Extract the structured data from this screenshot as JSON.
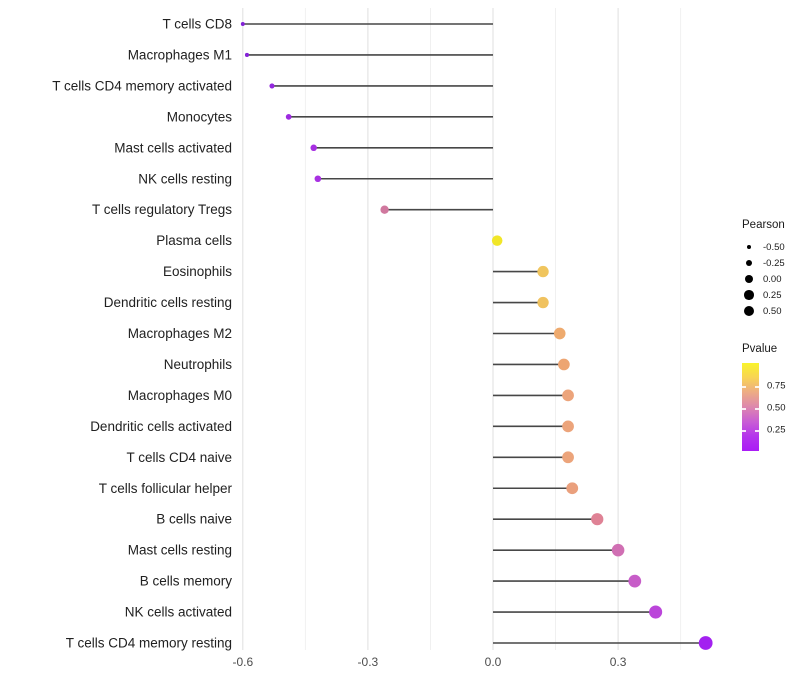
{
  "chart_data": {
    "type": "lollipop",
    "title": "",
    "xlabel": "",
    "ylabel": "",
    "axis_note": "horizontal lollipop chart of Pearson correlation per immune cell type; stem from 0 to value; dot size = Pearson, dot color = Pvalue",
    "xlim": [
      -0.66,
      0.56
    ],
    "x_ticks": [
      {
        "value": -0.6,
        "label": "-0.6"
      },
      {
        "value": -0.3,
        "label": "-0.3"
      },
      {
        "value": 0.0,
        "label": "0.0"
      },
      {
        "value": 0.3,
        "label": "0.3"
      }
    ],
    "x_minor_ticks": [
      -0.45,
      -0.15,
      0.15,
      0.45
    ],
    "grid": "vertical-only",
    "points": [
      {
        "label": "T cells CD8",
        "pearson": -0.6,
        "color": "#8222d6"
      },
      {
        "label": "Macrophages M1",
        "pearson": -0.59,
        "color": "#8523d8"
      },
      {
        "label": "T cells CD4 memory activated",
        "pearson": -0.53,
        "color": "#9328de"
      },
      {
        "label": "Monocytes",
        "pearson": -0.49,
        "color": "#9d2be0"
      },
      {
        "label": "Mast cells activated",
        "pearson": -0.43,
        "color": "#a72fe2"
      },
      {
        "label": "NK cells resting",
        "pearson": -0.42,
        "color": "#a831e2"
      },
      {
        "label": "T cells regulatory  Tregs",
        "pearson": -0.26,
        "color": "#d0789e"
      },
      {
        "label": "Plasma cells",
        "pearson": 0.01,
        "color": "#f1e628"
      },
      {
        "label": "Eosinophils",
        "pearson": 0.12,
        "color": "#f0c55e"
      },
      {
        "label": "Dendritic cells resting",
        "pearson": 0.12,
        "color": "#f0c25f"
      },
      {
        "label": "Macrophages M2",
        "pearson": 0.16,
        "color": "#eeaa6e"
      },
      {
        "label": "Neutrophils",
        "pearson": 0.17,
        "color": "#eda572"
      },
      {
        "label": "Macrophages M0",
        "pearson": 0.18,
        "color": "#eca47b"
      },
      {
        "label": "Dendritic cells activated",
        "pearson": 0.18,
        "color": "#eca47b"
      },
      {
        "label": "T cells CD4 naive",
        "pearson": 0.18,
        "color": "#eca47b"
      },
      {
        "label": "T cells follicular helper",
        "pearson": 0.19,
        "color": "#eaa07d"
      },
      {
        "label": "B cells naive",
        "pearson": 0.25,
        "color": "#df8295"
      },
      {
        "label": "Mast cells resting",
        "pearson": 0.3,
        "color": "#d06fb3"
      },
      {
        "label": "B cells memory",
        "pearson": 0.34,
        "color": "#c75dc8"
      },
      {
        "label": "NK cells activated",
        "pearson": 0.39,
        "color": "#bb45da"
      },
      {
        "label": "T cells CD4 memory resting",
        "pearson": 0.51,
        "color": "#a321f0"
      }
    ],
    "legend_size": {
      "title": "Pearson",
      "entries": [
        {
          "value": -0.5,
          "label": "-0.50"
        },
        {
          "value": -0.25,
          "label": "-0.25"
        },
        {
          "value": 0.0,
          "label": "0.00"
        },
        {
          "value": 0.25,
          "label": "0.25"
        },
        {
          "value": 0.5,
          "label": "0.50"
        }
      ]
    },
    "legend_color": {
      "title": "Pvalue",
      "tick_labels": [
        "0.75",
        "0.50",
        "0.25"
      ],
      "tick_offsets": [
        23,
        45,
        67
      ],
      "gradient_top_to_bottom": [
        "#f9f42c",
        "#f8d355",
        "#edab85",
        "#dd87ae",
        "#c95ed4",
        "#b434ec",
        "#aa1cf6"
      ]
    }
  },
  "colors": {
    "background": "#ffffff",
    "stem": "#474747",
    "grid_major": "#e2e2e2",
    "grid_minor": "#efefef",
    "axis_text": "#4d4d4d",
    "label_text": "#212121",
    "legend_dot": "#000000"
  }
}
